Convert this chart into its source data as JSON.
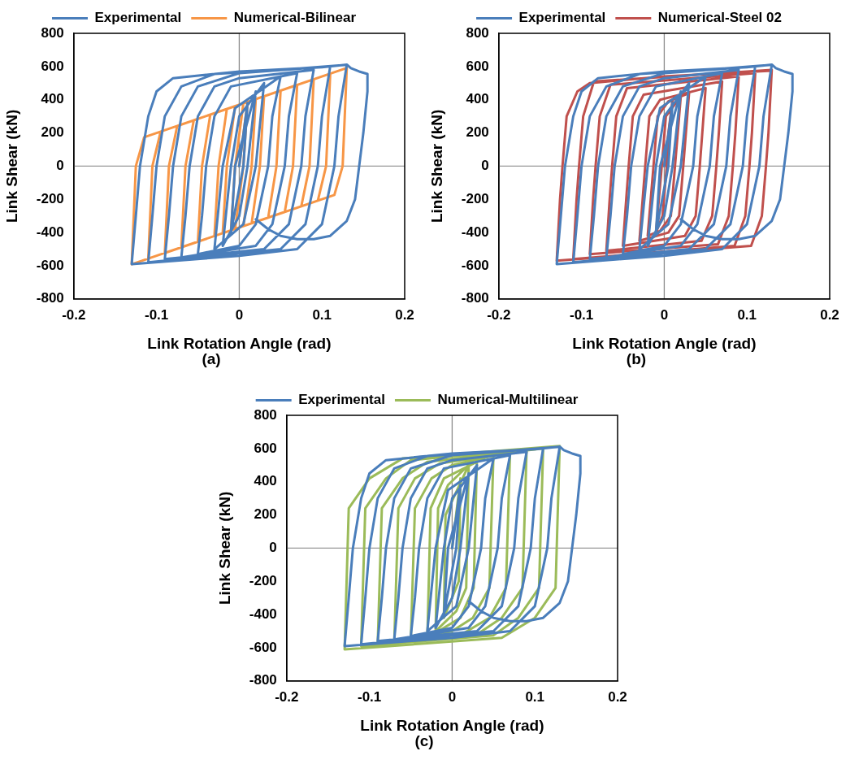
{
  "chart_data": [
    {
      "type": "line",
      "xlabel": "Link Rotation Angle (rad)",
      "ylabel": "Link Shear (kN)",
      "annotations": [
        "(a)"
      ],
      "legend": "top",
      "xlim": [
        -0.2,
        0.2
      ],
      "xticks": [
        -0.2,
        -0.1,
        0,
        0.1,
        0.2
      ],
      "ylim": [
        -800,
        800
      ],
      "yticks": [
        -800,
        -600,
        -400,
        -200,
        0,
        200,
        400,
        600,
        800
      ],
      "ref_lines": [
        {
          "axis": "x",
          "value": 0,
          "color": "#8c8c8c"
        },
        {
          "axis": "y",
          "value": 0,
          "color": "#999999"
        }
      ],
      "series": [
        {
          "name": "Experimental",
          "color": "#4a7ebb",
          "x": [
            0,
            0.01,
            0.005,
            -0.01,
            -0.005,
            0.02,
            0.01,
            0,
            -0.02,
            -0.01,
            0,
            0.03,
            0.02,
            0.005,
            -0.03,
            -0.02,
            -0.005,
            0.05,
            0.04,
            0.035,
            0.02,
            0,
            -0.05,
            -0.045,
            -0.04,
            -0.03,
            -0.01,
            0.07,
            0.06,
            0.055,
            0.04,
            0.02,
            -0.07,
            -0.065,
            -0.06,
            -0.05,
            -0.03,
            0,
            0.09,
            0.08,
            0.075,
            0.06,
            0.03,
            -0.09,
            -0.085,
            -0.08,
            -0.07,
            -0.05,
            0,
            0.11,
            0.1,
            0.095,
            0.08,
            0.05,
            -0.11,
            -0.105,
            -0.1,
            -0.09,
            -0.07,
            -0.03,
            0.05,
            0.13,
            0.12,
            0.115,
            0.1,
            0.07,
            0,
            -0.13,
            -0.125,
            -0.12,
            -0.11,
            -0.1,
            -0.08,
            0,
            0.1,
            0.13,
            0.135,
            0.145,
            0.155,
            0.155,
            0.15,
            0.145,
            0.14,
            0.13,
            0.11,
            0.09,
            0.07,
            0.05,
            0.035,
            0.02
          ],
          "values": [
            0,
            380,
            0,
            -400,
            0,
            450,
            0,
            -300,
            -480,
            0,
            300,
            500,
            0,
            -350,
            -500,
            0,
            350,
            540,
            300,
            0,
            -350,
            -480,
            -530,
            -300,
            0,
            300,
            480,
            560,
            300,
            0,
            -350,
            -480,
            -550,
            -300,
            0,
            300,
            480,
            530,
            580,
            300,
            0,
            -350,
            -500,
            -560,
            -300,
            0,
            300,
            480,
            560,
            600,
            300,
            0,
            -350,
            -500,
            -580,
            -300,
            0,
            300,
            480,
            555,
            580,
            610,
            300,
            0,
            -350,
            -500,
            -540,
            -590,
            -300,
            0,
            300,
            450,
            530,
            570,
            595,
            612,
            590,
            570,
            555,
            450,
            200,
            0,
            -200,
            -330,
            -420,
            -440,
            -440,
            -420,
            -380,
            -320
          ]
        },
        {
          "name": "Numerical-Bilinear",
          "color": "#f79646",
          "x": [
            0,
            0.01,
            0.005,
            -0.005,
            -0.01,
            -0.005,
            0.005,
            0.02,
            0.015,
            0.005,
            -0.02,
            -0.015,
            -0.005,
            0.03,
            0.025,
            0.015,
            -0.03,
            -0.025,
            -0.015,
            0.05,
            0.045,
            0.035,
            -0.05,
            -0.045,
            -0.035,
            0.07,
            0.065,
            0.055,
            -0.07,
            -0.065,
            -0.055,
            0.09,
            0.085,
            0.075,
            -0.09,
            -0.085,
            -0.075,
            0.11,
            0.105,
            0.095,
            -0.11,
            -0.105,
            -0.095,
            0.13,
            0.125,
            0.115,
            -0.13,
            -0.125,
            -0.115,
            0
          ],
          "values": [
            0,
            387,
            0,
            -378,
            -387,
            0,
            378,
            404,
            0,
            -361,
            -404,
            0,
            361,
            421,
            0,
            -344,
            -421,
            0,
            344,
            455,
            0,
            -310,
            -455,
            0,
            310,
            489,
            0,
            -276,
            -489,
            0,
            276,
            523,
            0,
            -242,
            -523,
            0,
            242,
            557,
            0,
            -208,
            -557,
            0,
            208,
            591,
            0,
            -174,
            -591,
            0,
            174,
            370
          ]
        }
      ]
    },
    {
      "type": "line",
      "xlabel": "Link Rotation Angle (rad)",
      "ylabel": "Link Shear (kN)",
      "annotations": [
        "(b)"
      ],
      "legend": "top",
      "xlim": [
        -0.2,
        0.2
      ],
      "xticks": [
        -0.2,
        -0.1,
        0,
        0.1,
        0.2
      ],
      "ylim": [
        -800,
        800
      ],
      "yticks": [
        -800,
        -600,
        -400,
        -200,
        0,
        200,
        400,
        600,
        800
      ],
      "ref_lines": [
        {
          "axis": "x",
          "value": 0,
          "color": "#8c8c8c"
        },
        {
          "axis": "y",
          "value": 0,
          "color": "#999999"
        }
      ],
      "series": [
        {
          "name": "Experimental",
          "color": "#4a7ebb",
          "x": [
            0,
            0.01,
            0.005,
            -0.01,
            -0.005,
            0.02,
            0.01,
            0,
            -0.02,
            -0.01,
            0,
            0.03,
            0.02,
            0.005,
            -0.03,
            -0.02,
            -0.005,
            0.05,
            0.04,
            0.035,
            0.02,
            0,
            -0.05,
            -0.045,
            -0.04,
            -0.03,
            -0.01,
            0.07,
            0.06,
            0.055,
            0.04,
            0.02,
            -0.07,
            -0.065,
            -0.06,
            -0.05,
            -0.03,
            0,
            0.09,
            0.08,
            0.075,
            0.06,
            0.03,
            -0.09,
            -0.085,
            -0.08,
            -0.07,
            -0.05,
            0,
            0.11,
            0.1,
            0.095,
            0.08,
            0.05,
            -0.11,
            -0.105,
            -0.1,
            -0.09,
            -0.07,
            -0.03,
            0.05,
            0.13,
            0.12,
            0.115,
            0.1,
            0.07,
            0,
            -0.13,
            -0.125,
            -0.12,
            -0.11,
            -0.1,
            -0.08,
            0,
            0.1,
            0.13,
            0.135,
            0.145,
            0.155,
            0.155,
            0.15,
            0.145,
            0.14,
            0.13,
            0.11,
            0.09,
            0.07,
            0.05,
            0.035,
            0.02
          ],
          "values": [
            0,
            380,
            0,
            -400,
            0,
            450,
            0,
            -300,
            -480,
            0,
            300,
            500,
            0,
            -350,
            -500,
            0,
            350,
            540,
            300,
            0,
            -350,
            -480,
            -530,
            -300,
            0,
            300,
            480,
            560,
            300,
            0,
            -350,
            -480,
            -550,
            -300,
            0,
            300,
            480,
            530,
            580,
            300,
            0,
            -350,
            -500,
            -560,
            -300,
            0,
            300,
            480,
            560,
            600,
            300,
            0,
            -350,
            -500,
            -580,
            -300,
            0,
            300,
            480,
            555,
            580,
            610,
            300,
            0,
            -350,
            -500,
            -540,
            -590,
            -300,
            0,
            300,
            450,
            530,
            570,
            595,
            612,
            590,
            570,
            555,
            450,
            200,
            0,
            -200,
            -330,
            -420,
            -440,
            -440,
            -420,
            -380,
            -320
          ]
        },
        {
          "name": "Numerical-Steel 02",
          "color": "#c0504d",
          "x": [
            0,
            0.01,
            0.003,
            -0.002,
            -0.01,
            -0.003,
            0.002,
            0.02,
            0.013,
            0.008,
            -0.005,
            -0.02,
            -0.013,
            -0.008,
            0.005,
            0.03,
            0.023,
            0.018,
            0.005,
            -0.03,
            -0.023,
            -0.018,
            -0.005,
            0.05,
            0.046,
            0.043,
            0.038,
            0.025,
            -0.05,
            -0.046,
            -0.043,
            -0.038,
            -0.025,
            0.07,
            0.066,
            0.063,
            0.058,
            0.045,
            -0.07,
            -0.066,
            -0.063,
            -0.058,
            -0.045,
            0.09,
            0.086,
            0.083,
            0.078,
            0.065,
            -0.09,
            -0.086,
            -0.083,
            -0.078,
            -0.065,
            0.11,
            0.106,
            0.103,
            0.098,
            0.085,
            -0.11,
            -0.106,
            -0.103,
            -0.098,
            -0.085,
            0.13,
            0.126,
            0.123,
            0.118,
            0.105,
            -0.13,
            -0.126,
            -0.123,
            -0.118,
            -0.105,
            -0.09,
            0,
            0.13
          ],
          "values": [
            0,
            400,
            0,
            -300,
            -400,
            0,
            300,
            420,
            0,
            -300,
            -390,
            -420,
            0,
            300,
            390,
            440,
            0,
            -300,
            -400,
            -450,
            0,
            300,
            400,
            470,
            200,
            0,
            -300,
            -420,
            -480,
            -200,
            0,
            300,
            430,
            510,
            200,
            0,
            -300,
            -450,
            -510,
            -200,
            0,
            300,
            470,
            540,
            200,
            0,
            -300,
            -470,
            -530,
            -200,
            0,
            300,
            490,
            560,
            200,
            0,
            -300,
            -480,
            -560,
            -200,
            0,
            300,
            510,
            580,
            200,
            0,
            -300,
            -480,
            -570,
            -200,
            0,
            300,
            450,
            500,
            540,
            575
          ]
        }
      ]
    },
    {
      "type": "line",
      "xlabel": "Link Rotation Angle (rad)",
      "ylabel": "Link Shear (kN)",
      "annotations": [
        "(c)"
      ],
      "legend": "top",
      "xlim": [
        -0.2,
        0.2
      ],
      "xticks": [
        -0.2,
        -0.1,
        0,
        0.1,
        0.2
      ],
      "ylim": [
        -800,
        800
      ],
      "yticks": [
        -800,
        -600,
        -400,
        -200,
        0,
        200,
        400,
        600,
        800
      ],
      "ref_lines": [
        {
          "axis": "x",
          "value": 0,
          "color": "#8c8c8c"
        },
        {
          "axis": "y",
          "value": 0,
          "color": "#999999"
        }
      ],
      "series": [
        {
          "name": "Experimental",
          "color": "#4a7ebb",
          "x": [
            0,
            0.01,
            0.005,
            -0.01,
            -0.005,
            0.02,
            0.01,
            0,
            -0.02,
            -0.01,
            0,
            0.03,
            0.02,
            0.005,
            -0.03,
            -0.02,
            -0.005,
            0.05,
            0.04,
            0.035,
            0.02,
            0,
            -0.05,
            -0.045,
            -0.04,
            -0.03,
            -0.01,
            0.07,
            0.06,
            0.055,
            0.04,
            0.02,
            -0.07,
            -0.065,
            -0.06,
            -0.05,
            -0.03,
            0,
            0.09,
            0.08,
            0.075,
            0.06,
            0.03,
            -0.09,
            -0.085,
            -0.08,
            -0.07,
            -0.05,
            0,
            0.11,
            0.1,
            0.095,
            0.08,
            0.05,
            -0.11,
            -0.105,
            -0.1,
            -0.09,
            -0.07,
            -0.03,
            0.05,
            0.13,
            0.12,
            0.115,
            0.1,
            0.07,
            0,
            -0.13,
            -0.125,
            -0.12,
            -0.11,
            -0.1,
            -0.08,
            0,
            0.1,
            0.13,
            0.135,
            0.145,
            0.155,
            0.155,
            0.15,
            0.145,
            0.14,
            0.13,
            0.11,
            0.09,
            0.07,
            0.05,
            0.035,
            0.02
          ],
          "values": [
            0,
            380,
            0,
            -400,
            0,
            450,
            0,
            -300,
            -480,
            0,
            300,
            500,
            0,
            -350,
            -500,
            0,
            350,
            540,
            300,
            0,
            -350,
            -480,
            -530,
            -300,
            0,
            300,
            480,
            560,
            300,
            0,
            -350,
            -480,
            -550,
            -300,
            0,
            300,
            480,
            530,
            580,
            300,
            0,
            -350,
            -500,
            -560,
            -300,
            0,
            300,
            480,
            560,
            600,
            300,
            0,
            -350,
            -500,
            -580,
            -300,
            0,
            300,
            480,
            555,
            580,
            610,
            300,
            0,
            -350,
            -500,
            -540,
            -590,
            -300,
            0,
            300,
            450,
            530,
            570,
            595,
            612,
            590,
            570,
            555,
            450,
            200,
            0,
            -200,
            -330,
            -420,
            -440,
            -440,
            -420,
            -380,
            -320
          ]
        },
        {
          "name": "Numerical-Multilinear",
          "color": "#9bbb59",
          "x": [
            0,
            0.01,
            0.008,
            -0.01,
            -0.008,
            0.02,
            0.017,
            0.005,
            -0.02,
            -0.017,
            -0.005,
            0.03,
            0.026,
            0.01,
            -0.03,
            -0.026,
            -0.01,
            0.05,
            0.045,
            0.025,
            0,
            -0.05,
            -0.045,
            -0.025,
            0,
            0.07,
            0.065,
            0.045,
            0.015,
            -0.07,
            -0.065,
            -0.045,
            -0.015,
            0.09,
            0.085,
            0.06,
            0.03,
            -0.09,
            -0.085,
            -0.06,
            -0.03,
            0.11,
            0.105,
            0.08,
            0.05,
            -0.11,
            -0.105,
            -0.08,
            -0.05,
            0.13,
            0.125,
            0.1,
            0.06,
            -0.13,
            -0.125,
            -0.1,
            -0.06,
            0.13
          ],
          "values": [
            0,
            420,
            -200,
            -420,
            200,
            500,
            -240,
            -380,
            -500,
            240,
            380,
            550,
            -240,
            -420,
            -540,
            240,
            420,
            570,
            -240,
            -420,
            -500,
            -560,
            240,
            420,
            500,
            580,
            -240,
            -420,
            -510,
            -570,
            240,
            420,
            510,
            590,
            -240,
            -420,
            -520,
            -580,
            240,
            420,
            520,
            600,
            -240,
            -420,
            -525,
            -590,
            240,
            420,
            530,
            615,
            -240,
            -420,
            -540,
            -610,
            240,
            420,
            540,
            615
          ]
        }
      ]
    }
  ]
}
